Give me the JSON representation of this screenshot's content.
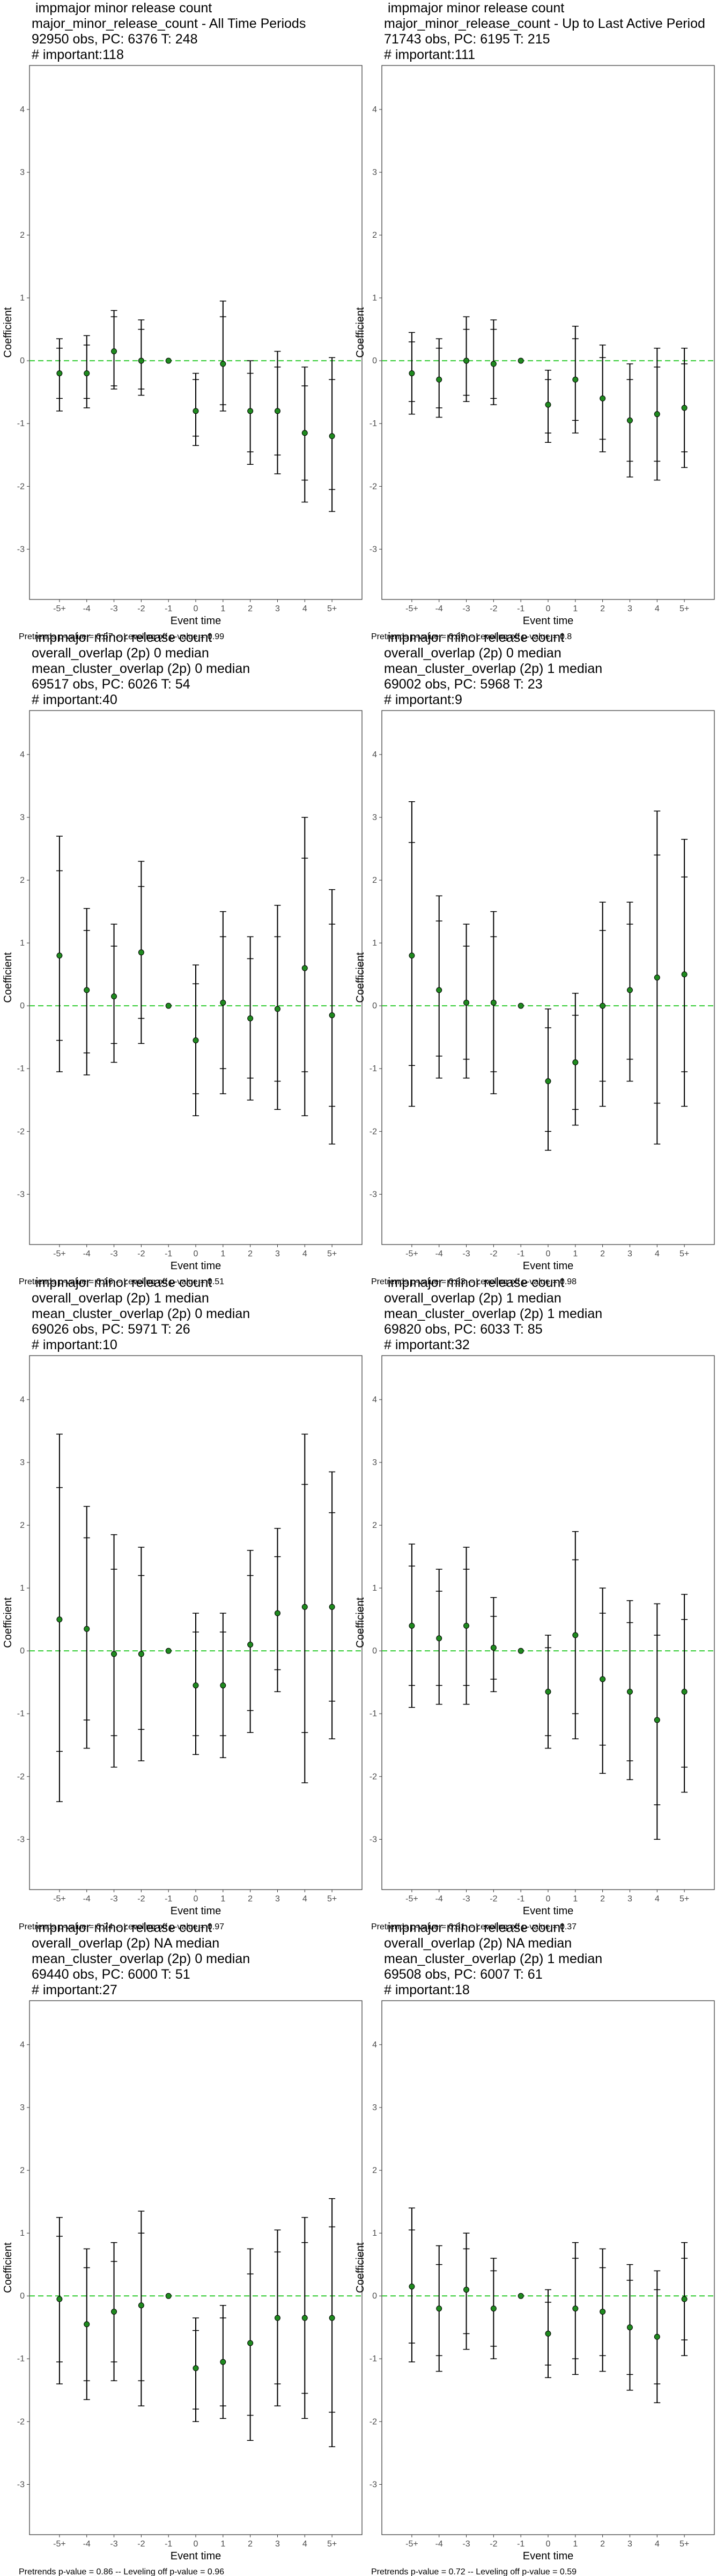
{
  "chart_data": [
    {
      "type": "errorbar",
      "title": [
        " impmajor minor release count",
        "major_minor_release_count - All Time Periods",
        "92950 obs, PC: 6376 T: 248",
        "# important:118"
      ],
      "categories": [
        "-5+",
        "-4",
        "-3",
        "-2",
        "-1",
        "0",
        "1",
        "2",
        "3",
        "4",
        "5+"
      ],
      "values": [
        -0.2,
        -0.2,
        0.15,
        0,
        0,
        -0.8,
        -0.05,
        -0.8,
        -0.8,
        -1.15,
        -1.2
      ],
      "ci_low": [
        -0.6,
        -0.6,
        -0.4,
        -0.45,
        null,
        -1.2,
        -0.7,
        -1.45,
        -1.5,
        -1.9,
        -2.05
      ],
      "ci_high": [
        0.2,
        0.25,
        0.7,
        0.5,
        null,
        -0.3,
        0.7,
        -0.2,
        -0.1,
        -0.4,
        -0.3
      ],
      "band_low": [
        -0.8,
        -0.75,
        -0.45,
        -0.55,
        null,
        -1.35,
        -0.8,
        -1.65,
        -1.8,
        -2.25,
        -2.4
      ],
      "band_high": [
        0.35,
        0.4,
        0.8,
        0.65,
        null,
        -0.2,
        0.95,
        0,
        0.15,
        -0.1,
        0.05
      ],
      "ylim": [
        -3.8,
        4.7
      ],
      "yticks": [
        -3,
        -2,
        -1,
        0,
        1,
        2,
        3,
        4
      ],
      "hline": 0,
      "xlabel": "Event time",
      "ylabel": "Coefficient",
      "footnote": "Pretrends p-value = 0.57 -- Leveling off p-value = 0.99",
      "point_color": "#1f8a1f",
      "hline_color": "#33cc33"
    },
    {
      "type": "errorbar",
      "title": [
        " impmajor minor release count",
        "major_minor_release_count - Up to Last Active Period",
        "71743 obs, PC: 6195 T: 215",
        "# important:111"
      ],
      "categories": [
        "-5+",
        "-4",
        "-3",
        "-2",
        "-1",
        "0",
        "1",
        "2",
        "3",
        "4",
        "5+"
      ],
      "values": [
        -0.2,
        -0.3,
        0,
        -0.05,
        0,
        -0.7,
        -0.3,
        -0.6,
        -0.95,
        -0.85,
        -0.75
      ],
      "ci_low": [
        -0.65,
        -0.75,
        -0.55,
        -0.6,
        null,
        -1.15,
        -0.95,
        -1.25,
        -1.6,
        -1.6,
        -1.45
      ],
      "ci_high": [
        0.3,
        0.2,
        0.5,
        0.5,
        null,
        -0.3,
        0.35,
        0.05,
        -0.3,
        -0.1,
        -0.05
      ],
      "band_low": [
        -0.85,
        -0.9,
        -0.65,
        -0.7,
        null,
        -1.3,
        -1.15,
        -1.45,
        -1.85,
        -1.9,
        -1.7
      ],
      "band_high": [
        0.45,
        0.35,
        0.7,
        0.65,
        null,
        -0.15,
        0.55,
        0.25,
        -0.05,
        0.2,
        0.2
      ],
      "ylim": [
        -3.8,
        4.7
      ],
      "yticks": [
        -3,
        -2,
        -1,
        0,
        1,
        2,
        3,
        4
      ],
      "hline": 0,
      "xlabel": "Event time",
      "ylabel": "Coefficient",
      "footnote": "Pretrends p-value = 0.69 -- Leveling off p-value = 0.8",
      "point_color": "#1f8a1f",
      "hline_color": "#33cc33"
    },
    {
      "type": "errorbar",
      "title": [
        " impmajor minor release count",
        "overall_overlap (2p) 0 median",
        "mean_cluster_overlap (2p) 0 median",
        "69517 obs, PC: 6026 T: 54",
        "# important:40"
      ],
      "categories": [
        "-5+",
        "-4",
        "-3",
        "-2",
        "-1",
        "0",
        "1",
        "2",
        "3",
        "4",
        "5+"
      ],
      "values": [
        0.8,
        0.25,
        0.15,
        0.85,
        0,
        -0.55,
        0.05,
        -0.2,
        -0.05,
        0.6,
        -0.15
      ],
      "ci_low": [
        -0.55,
        -0.75,
        -0.6,
        -0.2,
        null,
        -1.4,
        -1.0,
        -1.15,
        -1.2,
        -1.05,
        -1.6
      ],
      "ci_high": [
        2.15,
        1.2,
        0.95,
        1.9,
        null,
        0.35,
        1.1,
        0.75,
        1.1,
        2.35,
        1.3
      ],
      "band_low": [
        -1.05,
        -1.1,
        -0.9,
        -0.6,
        null,
        -1.75,
        -1.4,
        -1.5,
        -1.65,
        -1.75,
        -2.2
      ],
      "band_high": [
        2.7,
        1.55,
        1.3,
        2.3,
        null,
        0.65,
        1.5,
        1.1,
        1.6,
        3.0,
        1.85
      ],
      "ylim": [
        -3.8,
        4.7
      ],
      "yticks": [
        -3,
        -2,
        -1,
        0,
        1,
        2,
        3,
        4
      ],
      "hline": 0,
      "xlabel": "Event time",
      "ylabel": "Coefficient",
      "footnote": "Pretrends p-value = 0.16 -- Leveling off p-value = 0.51",
      "point_color": "#1f8a1f",
      "hline_color": "#33cc33"
    },
    {
      "type": "errorbar",
      "title": [
        " impmajor minor release count",
        "overall_overlap (2p) 0 median",
        "mean_cluster_overlap (2p) 1 median",
        "69002 obs, PC: 5968 T: 23",
        "# important:9"
      ],
      "categories": [
        "-5+",
        "-4",
        "-3",
        "-2",
        "-1",
        "0",
        "1",
        "2",
        "3",
        "4",
        "5+"
      ],
      "values": [
        0.8,
        0.25,
        0.05,
        0.05,
        0,
        -1.2,
        -0.9,
        0,
        0.25,
        0.45,
        0.5
      ],
      "ci_low": [
        -0.95,
        -0.8,
        -0.85,
        -1.05,
        null,
        -2.0,
        -1.65,
        -1.2,
        -0.85,
        -1.55,
        -1.05
      ],
      "ci_high": [
        2.6,
        1.35,
        0.95,
        1.1,
        null,
        -0.35,
        -0.15,
        1.2,
        1.3,
        2.4,
        2.05
      ],
      "band_low": [
        -1.6,
        -1.15,
        -1.15,
        -1.4,
        null,
        -2.3,
        -1.9,
        -1.6,
        -1.2,
        -2.2,
        -1.6
      ],
      "band_high": [
        3.25,
        1.75,
        1.3,
        1.5,
        null,
        -0.05,
        0.2,
        1.65,
        1.65,
        3.1,
        2.65
      ],
      "ylim": [
        -3.8,
        4.7
      ],
      "yticks": [
        -3,
        -2,
        -1,
        0,
        1,
        2,
        3,
        4
      ],
      "hline": 0,
      "xlabel": "Event time",
      "ylabel": "Coefficient",
      "footnote": "Pretrends p-value = 0.83 -- Leveling off p-value = 0.98",
      "point_color": "#1f8a1f",
      "hline_color": "#33cc33"
    },
    {
      "type": "errorbar",
      "title": [
        " impmajor minor release count",
        "overall_overlap (2p) 1 median",
        "mean_cluster_overlap (2p) 0 median",
        "69026 obs, PC: 5971 T: 26",
        "# important:10"
      ],
      "categories": [
        "-5+",
        "-4",
        "-3",
        "-2",
        "-1",
        "0",
        "1",
        "2",
        "3",
        "4",
        "5+"
      ],
      "values": [
        0.5,
        0.35,
        -0.05,
        -0.05,
        0,
        -0.55,
        -0.55,
        0.1,
        0.6,
        0.7,
        0.7
      ],
      "ci_low": [
        -1.6,
        -1.1,
        -1.35,
        -1.25,
        null,
        -1.35,
        -1.35,
        -0.95,
        -0.3,
        -1.3,
        -0.8
      ],
      "ci_high": [
        2.6,
        1.8,
        1.3,
        1.2,
        null,
        0.3,
        0.3,
        1.2,
        1.5,
        2.65,
        2.2
      ],
      "band_low": [
        -2.4,
        -1.55,
        -1.85,
        -1.75,
        null,
        -1.65,
        -1.7,
        -1.3,
        -0.65,
        -2.1,
        -1.4
      ],
      "band_high": [
        3.45,
        2.3,
        1.85,
        1.65,
        null,
        0.6,
        0.6,
        1.6,
        1.95,
        3.45,
        2.85
      ],
      "ylim": [
        -3.8,
        4.7
      ],
      "yticks": [
        -3,
        -2,
        -1,
        0,
        1,
        2,
        3,
        4
      ],
      "hline": 0,
      "xlabel": "Event time",
      "ylabel": "Coefficient",
      "footnote": "Pretrends p-value = 0.74 -- Leveling off p-value = 0.97",
      "point_color": "#1f8a1f",
      "hline_color": "#33cc33"
    },
    {
      "type": "errorbar",
      "title": [
        " impmajor minor release count",
        "overall_overlap (2p) 1 median",
        "mean_cluster_overlap (2p) 1 median",
        "69820 obs, PC: 6033 T: 85",
        "# important:32"
      ],
      "categories": [
        "-5+",
        "-4",
        "-3",
        "-2",
        "-1",
        "0",
        "1",
        "2",
        "3",
        "4",
        "5+"
      ],
      "values": [
        0.4,
        0.2,
        0.4,
        0.05,
        0,
        -0.65,
        0.25,
        -0.45,
        -0.65,
        -1.1,
        -0.65
      ],
      "ci_low": [
        -0.55,
        -0.55,
        -0.55,
        -0.45,
        null,
        -1.35,
        -1.0,
        -1.5,
        -1.75,
        -2.45,
        -1.85
      ],
      "ci_high": [
        1.35,
        0.95,
        1.3,
        0.55,
        null,
        0.05,
        1.45,
        0.6,
        0.45,
        0.25,
        0.5
      ],
      "band_low": [
        -0.9,
        -0.85,
        -0.85,
        -0.65,
        null,
        -1.55,
        -1.4,
        -1.95,
        -2.05,
        -3.0,
        -2.25
      ],
      "band_high": [
        1.7,
        1.3,
        1.65,
        0.85,
        null,
        0.25,
        1.9,
        1.0,
        0.8,
        0.75,
        0.9
      ],
      "ylim": [
        -3.8,
        4.7
      ],
      "yticks": [
        -3,
        -2,
        -1,
        0,
        1,
        2,
        3,
        4
      ],
      "hline": 0,
      "xlabel": "Event time",
      "ylabel": "Coefficient",
      "footnote": "Pretrends p-value = 0.81 -- Leveling off p-value = 0.37",
      "point_color": "#1f8a1f",
      "hline_color": "#33cc33"
    },
    {
      "type": "errorbar",
      "title": [
        " impmajor minor release count",
        "overall_overlap (2p) NA median",
        "mean_cluster_overlap (2p) 0 median",
        "69440 obs, PC: 6000 T: 51",
        "# important:27"
      ],
      "categories": [
        "-5+",
        "-4",
        "-3",
        "-2",
        "-1",
        "0",
        "1",
        "2",
        "3",
        "4",
        "5+"
      ],
      "values": [
        -0.05,
        -0.45,
        -0.25,
        -0.15,
        0,
        -1.15,
        -1.05,
        -0.75,
        -0.35,
        -0.35,
        -0.35
      ],
      "ci_low": [
        -1.05,
        -1.35,
        -1.05,
        -1.35,
        null,
        -1.8,
        -1.75,
        -1.9,
        -1.4,
        -1.55,
        -1.85
      ],
      "ci_high": [
        0.95,
        0.45,
        0.55,
        1.0,
        null,
        -0.55,
        -0.35,
        0.35,
        0.7,
        0.85,
        1.1
      ],
      "band_low": [
        -1.4,
        -1.65,
        -1.35,
        -1.75,
        null,
        -2.0,
        -1.95,
        -2.3,
        -1.75,
        -1.95,
        -2.4
      ],
      "band_high": [
        1.25,
        0.75,
        0.85,
        1.35,
        null,
        -0.35,
        -0.15,
        0.75,
        1.05,
        1.25,
        1.55
      ],
      "ylim": [
        -3.8,
        4.7
      ],
      "yticks": [
        -3,
        -2,
        -1,
        0,
        1,
        2,
        3,
        4
      ],
      "hline": 0,
      "xlabel": "Event time",
      "ylabel": "Coefficient",
      "footnote": "Pretrends p-value = 0.86 -- Leveling off p-value = 0.96",
      "point_color": "#1f8a1f",
      "hline_color": "#33cc33"
    },
    {
      "type": "errorbar",
      "title": [
        " impmajor minor release count",
        "overall_overlap (2p) NA median",
        "mean_cluster_overlap (2p) 1 median",
        "69508 obs, PC: 6007 T: 61",
        "# important:18"
      ],
      "categories": [
        "-5+",
        "-4",
        "-3",
        "-2",
        "-1",
        "0",
        "1",
        "2",
        "3",
        "4",
        "5+"
      ],
      "values": [
        0.15,
        -0.2,
        0.1,
        -0.2,
        0,
        -0.6,
        -0.2,
        -0.25,
        -0.5,
        -0.65,
        -0.05
      ],
      "ci_low": [
        -0.75,
        -0.95,
        -0.6,
        -0.8,
        null,
        -1.1,
        -1.0,
        -0.95,
        -1.25,
        -1.4,
        -0.7
      ],
      "ci_high": [
        1.05,
        0.5,
        0.75,
        0.4,
        null,
        -0.1,
        0.6,
        0.45,
        0.25,
        0.1,
        0.6
      ],
      "band_low": [
        -1.05,
        -1.2,
        -0.85,
        -1.0,
        null,
        -1.3,
        -1.25,
        -1.2,
        -1.5,
        -1.7,
        -0.95
      ],
      "band_high": [
        1.4,
        0.8,
        1.0,
        0.6,
        null,
        0.1,
        0.85,
        0.75,
        0.5,
        0.4,
        0.85
      ],
      "ylim": [
        -3.8,
        4.7
      ],
      "yticks": [
        -3,
        -2,
        -1,
        0,
        1,
        2,
        3,
        4
      ],
      "hline": 0,
      "xlabel": "Event time",
      "ylabel": "Coefficient",
      "footnote": "Pretrends p-value = 0.72 -- Leveling off p-value = 0.59",
      "point_color": "#1f8a1f",
      "hline_color": "#33cc33"
    }
  ]
}
